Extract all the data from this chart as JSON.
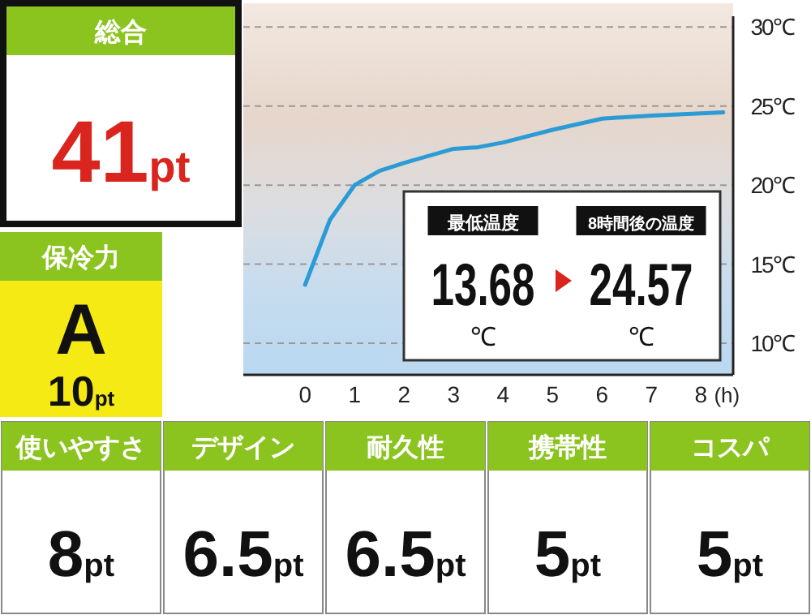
{
  "chart_data": [
    {
      "type": "line",
      "x": [
        0,
        0.5,
        1,
        1.5,
        2,
        3,
        3.5,
        4,
        5,
        6,
        7,
        8.45
      ],
      "series": [
        {
          "color": "#2b9bd6",
          "values": [
            13.7,
            17.8,
            20.0,
            20.9,
            21.4,
            22.3,
            22.4,
            22.7,
            23.5,
            24.2,
            24.4,
            24.6
          ]
        }
      ],
      "xlim": [
        -1.25,
        8.65
      ],
      "xticks": [
        0,
        1,
        2,
        3,
        4,
        5,
        6,
        7,
        8
      ],
      "xlabel": "(h)",
      "ylim": [
        8,
        31.5
      ],
      "yticks": [
        {
          "value": 10,
          "label": "10℃"
        },
        {
          "value": 15,
          "label": "15℃"
        },
        {
          "value": 20,
          "label": "20℃"
        },
        {
          "value": 25,
          "label": "25℃"
        },
        {
          "value": 30,
          "label": "30℃"
        }
      ],
      "grid": "y",
      "marker": "none",
      "line_style": "solid",
      "annotations": [
        "最低温度",
        "13.68",
        "℃",
        "8時間後の温度",
        "24.57",
        "℃"
      ]
    },
    {
      "type": "other",
      "categories": [
        "総合",
        "保冷力",
        "使いやすさ",
        "デザイン",
        "耐久性",
        "携帯性",
        "コスパ"
      ],
      "value_labels": [
        "41pt",
        "10pt",
        "8pt",
        "6.5pt",
        "6.5pt",
        "5pt",
        "5pt"
      ],
      "annotations": [
        "A"
      ]
    }
  ]
}
